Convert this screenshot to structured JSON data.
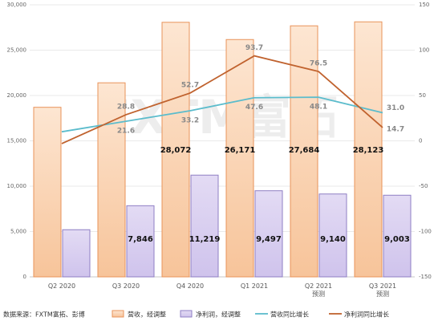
{
  "chart_data": {
    "type": "bar_line",
    "source": "数据来源：FXTM富拓、彭博",
    "watermark": "FXTM富拓",
    "categories": [
      "Q2 2020",
      "Q3 2020",
      "Q4 2020",
      "Q1 2021",
      "Q2 2021\n预测",
      "Q3 2021\n预测"
    ],
    "series": [
      {
        "name": "营收，经调整",
        "type": "bar",
        "color": "#e8935a",
        "fill": "#fbd3b0",
        "values": [
          18700,
          21400,
          28072,
          26171,
          27684,
          28123
        ],
        "value_labels": [
          null,
          null,
          "28,072",
          "26,171",
          "27,684",
          "28,123"
        ]
      },
      {
        "name": "净利润，经调整",
        "type": "bar",
        "color": "#8f7fc4",
        "fill": "#ddd4f1",
        "values": [
          5200,
          7846,
          11219,
          9497,
          9140,
          9003
        ],
        "value_labels": [
          null,
          "7,846",
          "11,219",
          "9,497",
          "9,140",
          "9,003"
        ]
      },
      {
        "name": "营收同比增长",
        "type": "line",
        "axis": "y2",
        "color": "#5bbccc",
        "values": [
          10,
          21.6,
          33.2,
          47.6,
          48.1,
          31.0
        ],
        "value_labels": [
          null,
          "21.6",
          "33.2",
          "47.6",
          "48.1",
          "31.0"
        ]
      },
      {
        "name": "净利润同比增长",
        "type": "line",
        "axis": "y2",
        "color": "#c0622e",
        "values": [
          -3,
          28.8,
          52.7,
          93.7,
          76.5,
          14.7
        ],
        "value_labels": [
          null,
          "28.8",
          "52.7",
          "93.7",
          "76.5",
          "14.7"
        ]
      }
    ],
    "ylim": [
      0,
      30000
    ],
    "yticks": [
      0,
      {
        "value": 5000,
        "label": "5,000"
      },
      {
        "value": 10000,
        "label": "10,000"
      },
      {
        "value": 15000,
        "label": "15,000"
      },
      {
        "value": 20000,
        "label": "20,000"
      },
      {
        "value": 25000,
        "label": "25,000"
      },
      {
        "value": 30000,
        "label": "30,000"
      }
    ],
    "y2lim": [
      -150,
      150
    ],
    "y2ticks": [
      -150,
      -100,
      -50,
      0,
      50,
      100,
      150
    ],
    "grid": true
  }
}
